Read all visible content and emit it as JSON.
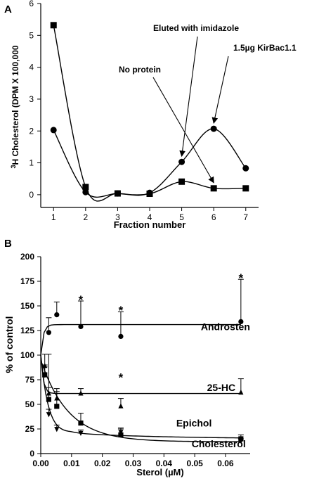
{
  "chart_data": [
    {
      "panel_label": "A",
      "type": "line",
      "xlabel": "Fraction number",
      "ylabel_prefix": "3",
      "ylabel": "H Cholesterol (DPM X 100,000",
      "xlim": [
        0.6,
        7.4
      ],
      "ylim": [
        -0.4,
        6
      ],
      "xticks": [
        1,
        2,
        3,
        4,
        5,
        6,
        7
      ],
      "yticks": [
        0,
        1,
        2,
        3,
        4,
        5,
        6
      ],
      "annotations": [
        {
          "text": "Eluted with imidazole",
          "target": [
            5,
            1.03
          ]
        },
        {
          "text": "1.5µg KirBac1.1",
          "target": [
            6,
            2.07
          ]
        },
        {
          "text": "No protein",
          "target": [
            6,
            0.2
          ]
        }
      ],
      "series": [
        {
          "marker": "circle",
          "x": [
            1,
            2,
            3,
            4,
            5,
            6,
            7
          ],
          "y": [
            2.03,
            0.08,
            0.04,
            0.06,
            1.03,
            2.07,
            0.83
          ]
        },
        {
          "marker": "square",
          "x": [
            1,
            2,
            3,
            4,
            5,
            6,
            7
          ],
          "y": [
            5.32,
            0.24,
            0.04,
            0.03,
            0.41,
            0.2,
            0.2
          ]
        }
      ]
    },
    {
      "panel_label": "B",
      "type": "scatter",
      "xlabel": "Sterol (µM)",
      "ylabel": "% of control",
      "xlim": [
        0,
        0.068
      ],
      "ylim": [
        0,
        200
      ],
      "xticks": [
        "0.00",
        "0.01",
        "0.02",
        "0.03",
        "0.04",
        "0.05",
        "0.06"
      ],
      "yticks": [
        0,
        25,
        50,
        75,
        100,
        125,
        150,
        175,
        200
      ],
      "series": [
        {
          "name": "Androsten",
          "marker": "circle",
          "label_at": [
            0.052,
            129
          ],
          "x": [
            0.0026,
            0.0052,
            0.013,
            0.026,
            0.065
          ],
          "y": [
            123,
            141,
            129,
            119,
            134
          ],
          "err": [
            15,
            13,
            26,
            25,
            43
          ],
          "fit_y": 131
        },
        {
          "name": "25-HC",
          "marker": "triangle-up",
          "label_at": [
            0.054,
            67
          ],
          "x": [
            0.0013,
            0.0026,
            0.0052,
            0.013,
            0.026,
            0.065
          ],
          "y": [
            89,
            61,
            56,
            61,
            48,
            62
          ],
          "err": [
            12,
            40,
            10,
            5,
            8,
            14
          ],
          "fit_y": 61
        },
        {
          "name": "Epichol",
          "marker": "square",
          "label_at": [
            0.044,
            31
          ],
          "x": [
            0.0013,
            0.0026,
            0.0052,
            0.013,
            0.026,
            0.065
          ],
          "y": [
            80,
            55,
            48,
            31,
            19,
            15
          ],
          "err": [
            8,
            12,
            15,
            10,
            7,
            4
          ]
        },
        {
          "name": "Cholesterol",
          "marker": "triangle-down",
          "label_at": [
            0.049,
            10
          ],
          "x": [
            0.0013,
            0.0026,
            0.0052,
            0.013,
            0.026,
            0.065
          ],
          "y": [
            80,
            40,
            25,
            21,
            22,
            13
          ],
          "err": [
            10,
            5,
            4,
            3,
            3,
            2
          ]
        }
      ],
      "significance_markers": [
        {
          "text": "*",
          "x": 0.013,
          "y": 158
        },
        {
          "text": "*",
          "x": 0.026,
          "y": 147
        },
        {
          "text": "*",
          "x": 0.065,
          "y": 180
        },
        {
          "text": "*",
          "x": 0.026,
          "y": 79
        }
      ]
    }
  ]
}
